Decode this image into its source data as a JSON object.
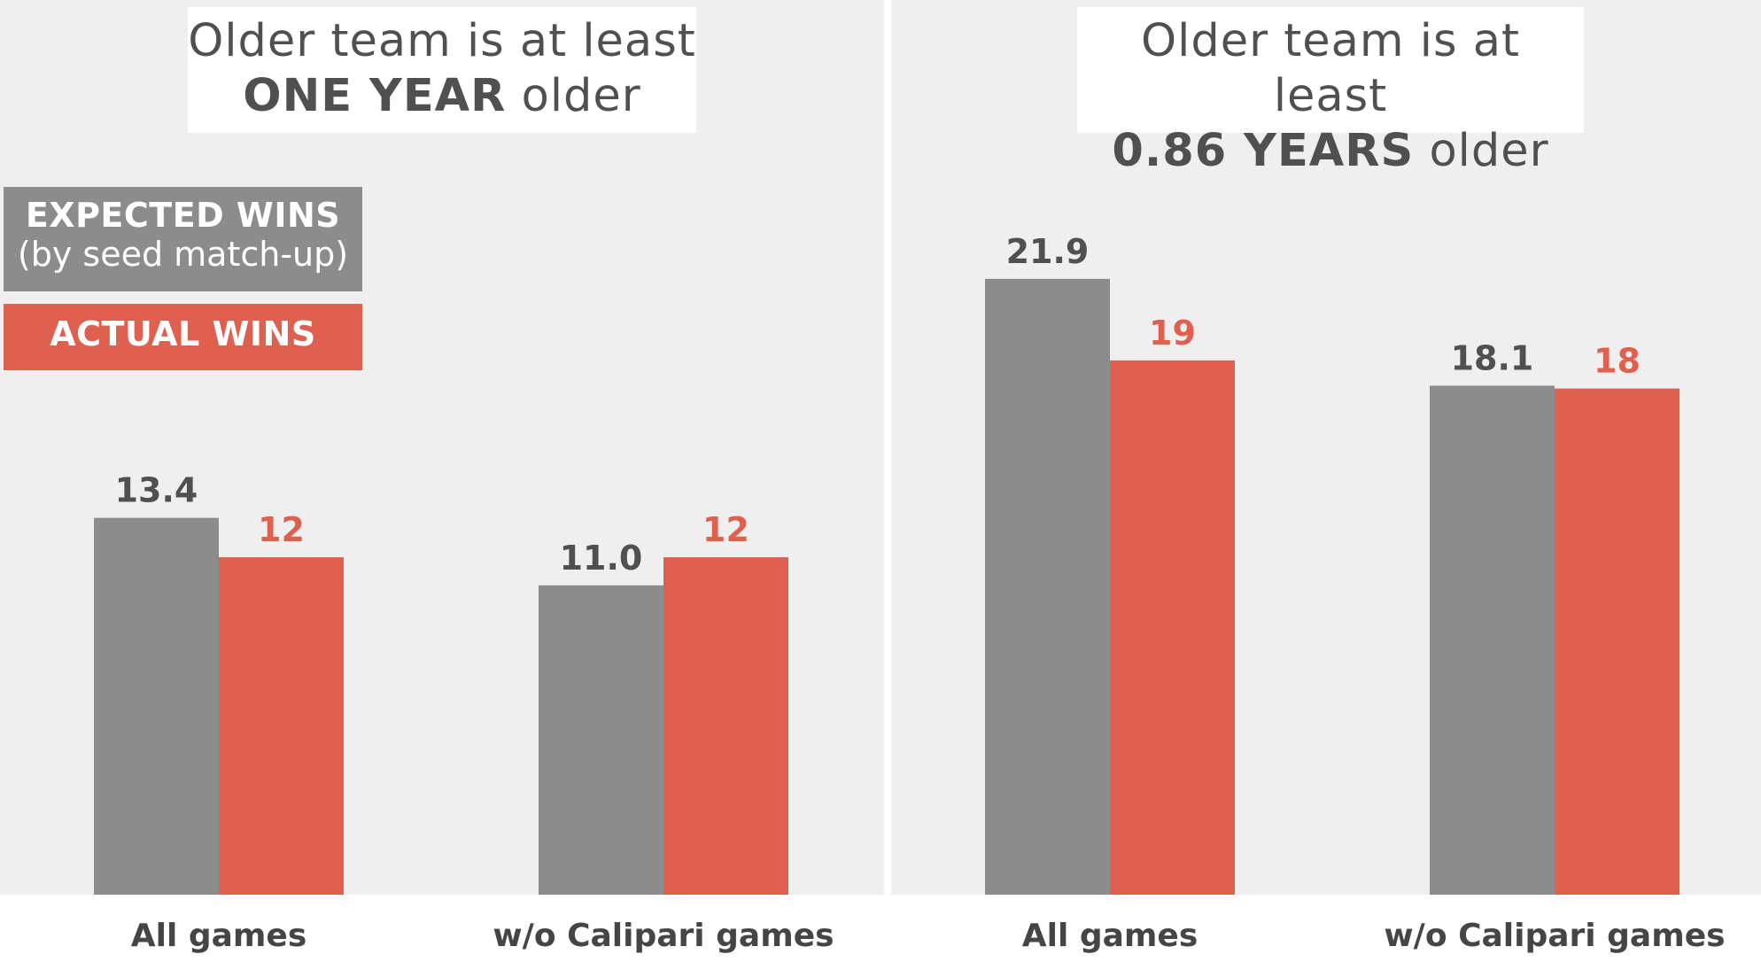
{
  "legend": {
    "expected_label": "EXPECTED WINS",
    "expected_sublabel": "(by seed match-up)",
    "actual_label": "ACTUAL WINS"
  },
  "colors": {
    "expected": "#8c8c8c",
    "actual": "#e06050",
    "expected_text": "#505050",
    "actual_text": "#e06050"
  },
  "chart_data": [
    {
      "type": "bar",
      "title_line1": "Older team is at least",
      "title_bold": "ONE YEAR",
      "title_suffix": "older",
      "categories": [
        "All games",
        "w/o Calipari games"
      ],
      "series": [
        {
          "name": "EXPECTED WINS",
          "values": [
            13.4,
            11.0
          ],
          "labels": [
            "13.4",
            "11.0"
          ]
        },
        {
          "name": "ACTUAL WINS",
          "values": [
            12,
            12
          ],
          "labels": [
            "12",
            "12"
          ]
        }
      ],
      "ylim": [
        0,
        23.5
      ],
      "grid": false,
      "legend_position": "left"
    },
    {
      "type": "bar",
      "title_line1": "Older team is at least",
      "title_bold": "0.86 YEARS",
      "title_suffix": "older",
      "categories": [
        "All games",
        "w/o Calipari games"
      ],
      "series": [
        {
          "name": "EXPECTED WINS",
          "values": [
            21.9,
            18.1
          ],
          "labels": [
            "21.9",
            "18.1"
          ]
        },
        {
          "name": "ACTUAL WINS",
          "values": [
            19,
            18
          ],
          "labels": [
            "19",
            "18"
          ]
        }
      ],
      "ylim": [
        0,
        23.5
      ],
      "grid": false
    }
  ]
}
